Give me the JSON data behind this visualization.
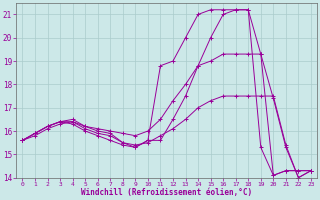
{
  "background_color": "#cce8e8",
  "line_color": "#990099",
  "grid_color": "#aacccc",
  "xlabel": "Windchill (Refroidissement éolien,°C)",
  "xlim": [
    -0.5,
    23.5
  ],
  "ylim": [
    14.0,
    21.5
  ],
  "yticks": [
    14,
    15,
    16,
    17,
    18,
    19,
    20,
    21
  ],
  "xticks": [
    0,
    1,
    2,
    3,
    4,
    5,
    6,
    7,
    8,
    9,
    10,
    11,
    12,
    13,
    14,
    15,
    16,
    17,
    18,
    19,
    20,
    21,
    22,
    23
  ],
  "lines": [
    {
      "x": [
        0,
        1,
        2,
        3,
        4,
        5,
        6,
        7,
        8,
        9,
        10,
        11,
        12,
        13,
        14,
        15,
        16,
        17,
        18,
        19,
        20,
        21,
        22,
        23
      ],
      "y": [
        15.6,
        15.9,
        16.2,
        16.4,
        16.3,
        16.0,
        15.8,
        15.6,
        15.4,
        15.3,
        15.6,
        18.8,
        19.0,
        20.0,
        21.0,
        21.2,
        21.2,
        21.2,
        21.2,
        15.3,
        14.1,
        14.3,
        14.3,
        14.3
      ]
    },
    {
      "x": [
        0,
        1,
        2,
        3,
        4,
        5,
        6,
        7,
        8,
        9,
        10,
        11,
        12,
        13,
        14,
        15,
        16,
        17,
        18,
        19,
        20,
        21,
        22,
        23
      ],
      "y": [
        15.6,
        15.9,
        16.2,
        16.4,
        16.5,
        16.2,
        16.0,
        15.9,
        15.5,
        15.3,
        15.6,
        15.6,
        16.5,
        17.5,
        18.8,
        20.0,
        21.0,
        21.2,
        21.2,
        19.3,
        14.1,
        14.3,
        14.3,
        14.3
      ]
    },
    {
      "x": [
        0,
        1,
        2,
        3,
        4,
        5,
        6,
        7,
        8,
        9,
        10,
        11,
        12,
        13,
        14,
        15,
        16,
        17,
        18,
        19,
        20,
        21,
        22,
        23
      ],
      "y": [
        15.6,
        15.9,
        16.2,
        16.4,
        16.4,
        16.2,
        16.1,
        16.0,
        15.9,
        15.8,
        16.0,
        16.5,
        17.3,
        18.0,
        18.8,
        19.0,
        19.3,
        19.3,
        19.3,
        19.3,
        17.4,
        15.3,
        14.0,
        14.3
      ]
    },
    {
      "x": [
        0,
        1,
        2,
        3,
        4,
        5,
        6,
        7,
        8,
        9,
        10,
        11,
        12,
        13,
        14,
        15,
        16,
        17,
        18,
        19,
        20,
        21,
        22,
        23
      ],
      "y": [
        15.6,
        15.8,
        16.1,
        16.3,
        16.4,
        16.1,
        15.9,
        15.8,
        15.5,
        15.4,
        15.5,
        15.8,
        16.1,
        16.5,
        17.0,
        17.3,
        17.5,
        17.5,
        17.5,
        17.5,
        17.5,
        15.4,
        14.0,
        14.3
      ]
    }
  ]
}
